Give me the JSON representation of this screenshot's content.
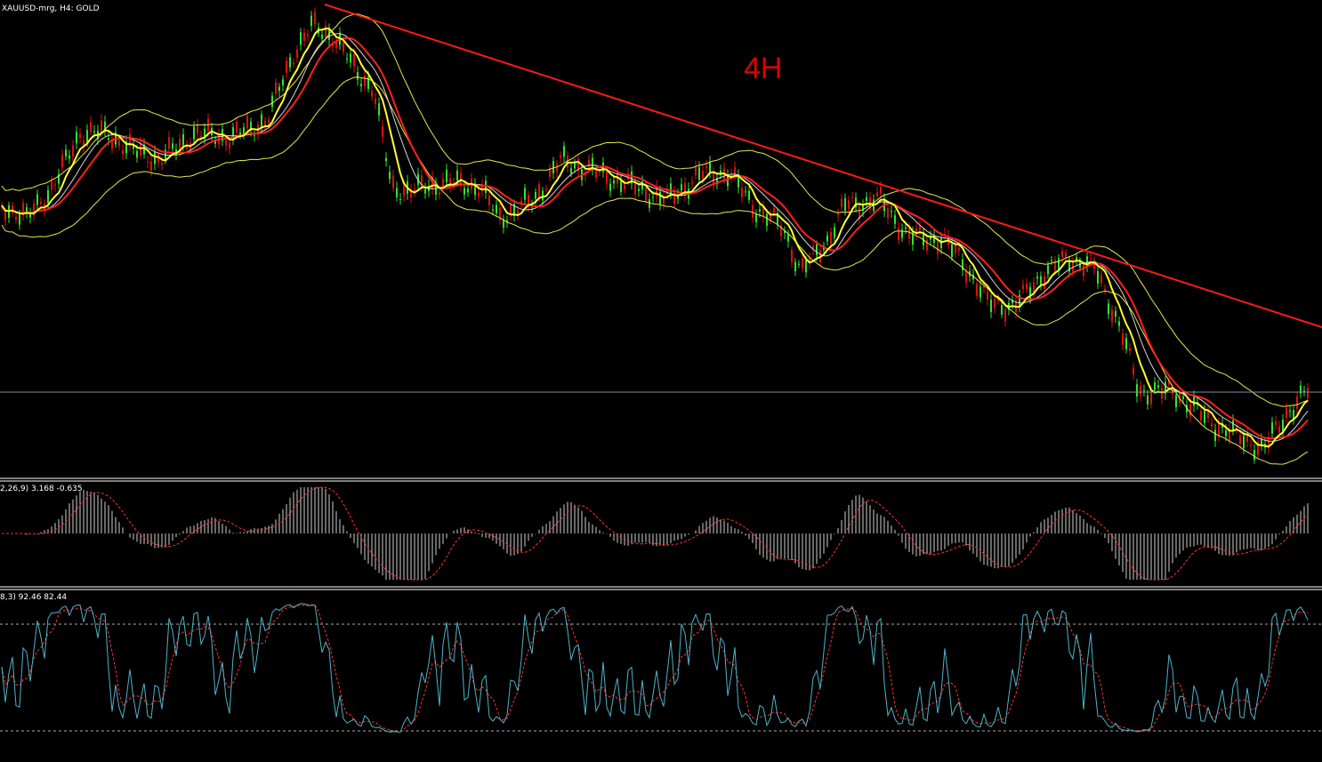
{
  "header": {
    "symbol": "XAUUSD-mrg, H4:  GOLD"
  },
  "annotation": "4H",
  "macd_panel": {
    "label": "2,26,9) 3.168 -0.635"
  },
  "stochastic_panel": {
    "label": "8,3) 92.46 82.44"
  }
}
